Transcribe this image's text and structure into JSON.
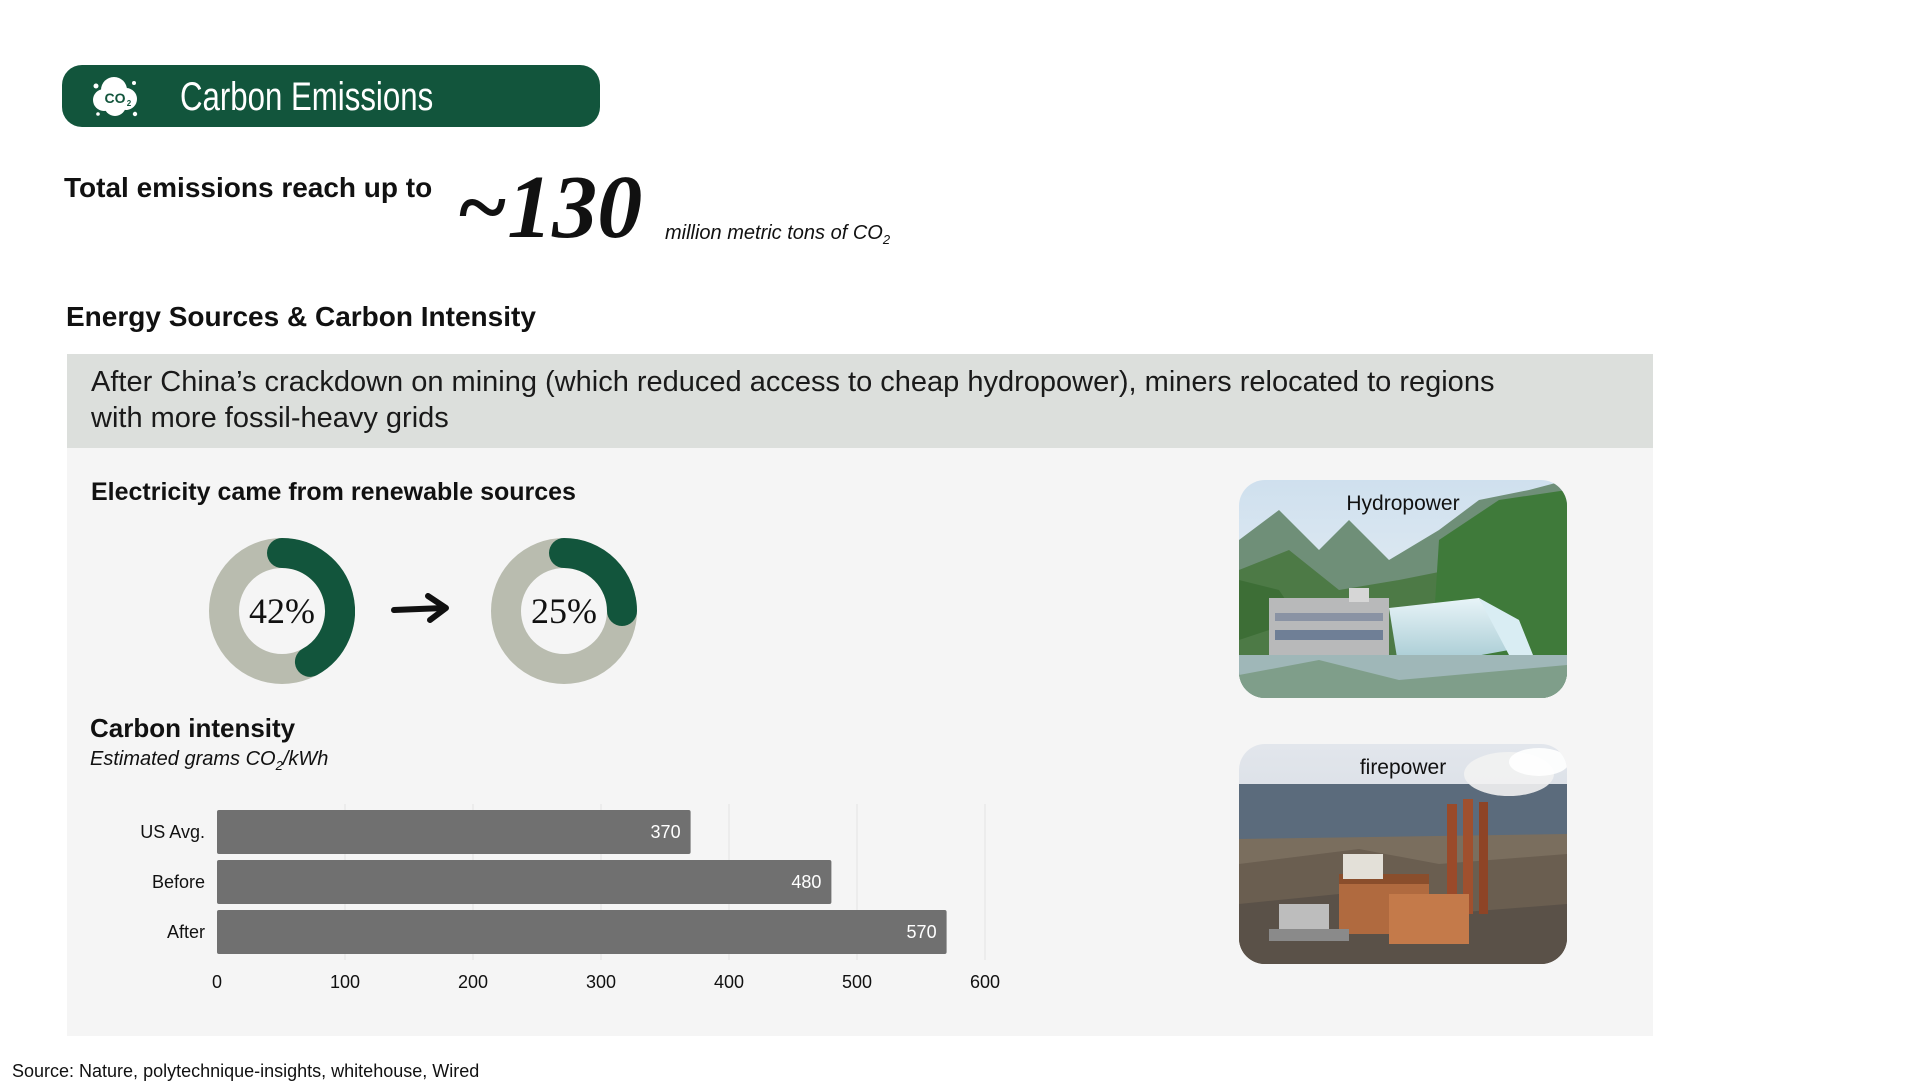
{
  "header": {
    "title": "Carbon Emissions",
    "icon": "co2-cloud-icon",
    "bg_color": "#12553c"
  },
  "total": {
    "label": "Total emissions reach up to",
    "value": "~130",
    "unit": "million metric tons of CO",
    "unit_sub": "2"
  },
  "section_title": "Energy Sources & Carbon Intensity",
  "banner": {
    "text": "After China’s crackdown on mining (which reduced access to cheap hydropower), miners relocated to regions with more fossil-heavy grids"
  },
  "renewable": {
    "title": "Electricity came from renewable sources",
    "before": {
      "label": "42%",
      "value": 0.42
    },
    "after": {
      "label": "25%",
      "value": 0.25
    },
    "arrow_icon": "arrow-right-icon",
    "fill_color": "#12553c",
    "track_color": "#b9bcaf"
  },
  "carbon_intensity": {
    "title": "Carbon intensity",
    "subtitle": "Estimated grams CO",
    "subtitle_sub": "2",
    "subtitle_suffix": "/kWh"
  },
  "chart_data": {
    "type": "bar",
    "orientation": "horizontal",
    "categories": [
      "US Avg.",
      "Before",
      "After"
    ],
    "values": [
      370,
      480,
      570
    ],
    "xlim": [
      0,
      600
    ],
    "xticks": [
      0,
      100,
      200,
      300,
      400,
      500,
      600
    ],
    "grid": true,
    "bar_color": "#707070"
  },
  "images": {
    "hydro": {
      "caption": "Hydropower"
    },
    "fire": {
      "caption": "firepower"
    }
  },
  "source": "Source: Nature, polytechnique-insights, whitehouse, Wired"
}
